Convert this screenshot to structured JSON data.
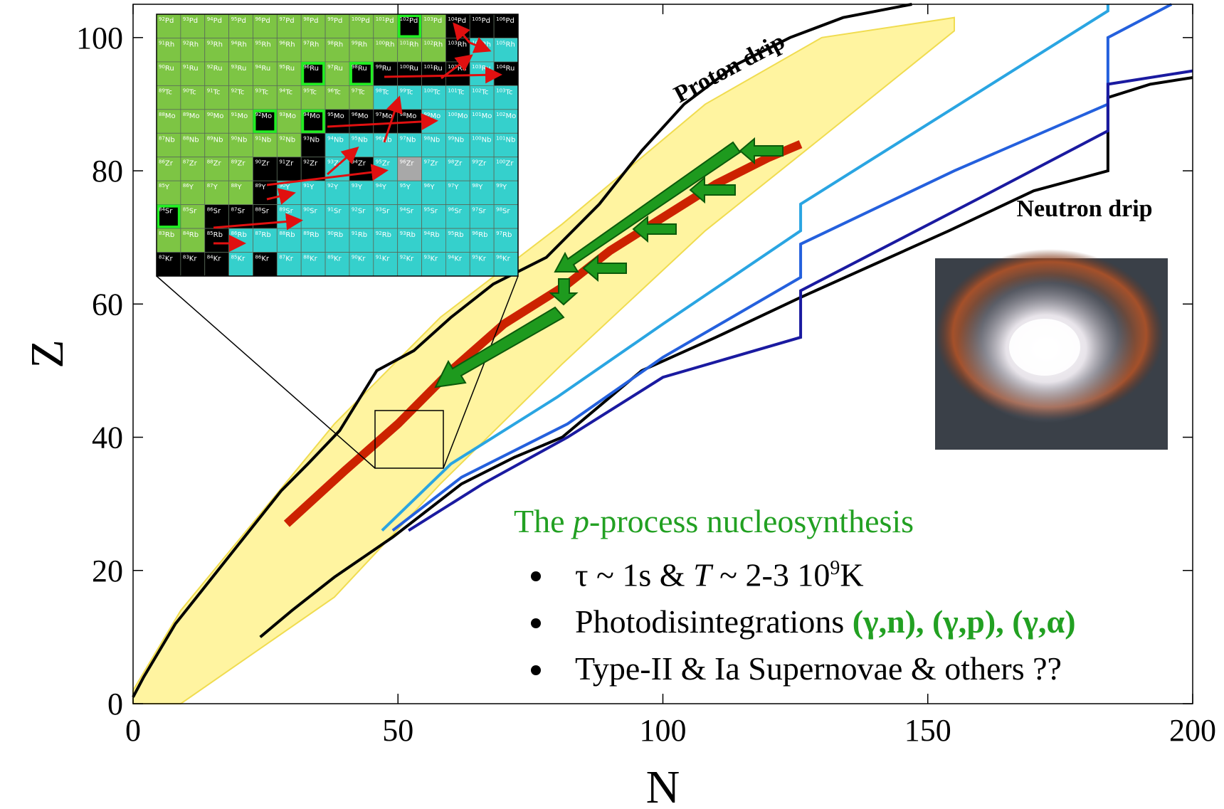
{
  "chart_data": {
    "type": "line",
    "xlabel": "N",
    "ylabel": "Z",
    "xlim": [
      0,
      200
    ],
    "ylim": [
      0,
      105
    ],
    "xticks": [
      0,
      50,
      100,
      150,
      200
    ],
    "yticks": [
      0,
      20,
      40,
      60,
      80,
      100
    ],
    "band": {
      "color": "#fff4a0",
      "x": [
        0,
        9,
        38,
        58,
        81,
        108,
        130,
        155
      ],
      "upper": [
        2,
        14,
        42,
        58,
        72,
        90,
        100,
        103
      ],
      "lower": [
        0,
        0,
        16,
        33,
        51,
        71,
        85,
        101
      ]
    },
    "series": [
      {
        "name": "Proton drip",
        "color": "#000000",
        "x": [
          0,
          2,
          5,
          8,
          12,
          16,
          20,
          24,
          28,
          33,
          39,
          46,
          53,
          60,
          68,
          78,
          88,
          96,
          104,
          114,
          124,
          134,
          147
        ],
        "values": [
          1,
          4,
          8,
          12,
          16,
          20,
          24,
          28,
          32,
          36,
          41,
          50,
          53,
          58,
          63,
          67,
          75,
          83,
          90,
          96,
          100,
          103,
          105
        ]
      },
      {
        "name": "Neutron drip",
        "color": "#000000",
        "x": [
          24,
          30,
          38,
          49,
          62,
          72,
          81,
          96,
          110,
          126,
          140,
          154,
          170,
          184,
          184,
          192,
          200
        ],
        "values": [
          10,
          14,
          19,
          25,
          33,
          37,
          40,
          50,
          55,
          61,
          66,
          71,
          77,
          80,
          91,
          93,
          94
        ]
      },
      {
        "color": "#2aa5e2",
        "x": [
          47,
          60,
          80,
          100,
          126,
          126,
          150,
          184,
          184
        ],
        "values": [
          26,
          36,
          46,
          57,
          71,
          75,
          87,
          104,
          105
        ]
      },
      {
        "color": "#2460dd",
        "x": [
          49,
          62,
          82,
          100,
          126,
          126,
          155,
          184,
          184,
          196
        ],
        "values": [
          26,
          34,
          42,
          52,
          64,
          69,
          80,
          90,
          100,
          105
        ]
      },
      {
        "color": "#1a1aa0",
        "x": [
          52,
          66,
          82,
          100,
          126,
          126,
          160,
          184,
          184,
          200
        ],
        "values": [
          26,
          33,
          40,
          49,
          55,
          62,
          76,
          86,
          93,
          95
        ]
      },
      {
        "color": "#cc2200",
        "x": [
          29,
          40,
          50,
          60,
          70,
          82,
          90,
          100,
          110,
          120,
          126
        ],
        "values": [
          27,
          35,
          42,
          50,
          57,
          63,
          68,
          73,
          78,
          82,
          84
        ]
      }
    ],
    "notes": {
      "heading": [
        "The ",
        "p",
        "-process nucleosynthesis"
      ],
      "bullets": [
        [
          "τ ~ 1s & ",
          "T",
          " ~ 2-3 10",
          "9",
          "K"
        ],
        [
          "Photodisintegrations ",
          "(γ,n), (γ,p), (γ,α)"
        ],
        [
          "Type-II & Ia Supernovae & others ??"
        ]
      ]
    }
  },
  "inset": {
    "rows": [
      {
        "element": "Pd",
        "A": [
          92,
          93,
          94,
          95,
          96,
          97,
          98,
          99,
          100,
          101,
          102,
          103,
          104,
          105,
          106
        ],
        "colors": [
          "#7dc544",
          "#7dc544",
          "#7dc544",
          "#7dc544",
          "#7dc544",
          "#7dc544",
          "#7dc544",
          "#7dc544",
          "#7dc544",
          "#7dc544",
          "#000000",
          "#7dc544",
          "#000000",
          "#000000",
          "#000000"
        ],
        "boxed": [
          102
        ]
      },
      {
        "element": "Rh",
        "A": [
          91,
          92,
          93,
          94,
          95,
          96,
          97,
          98,
          99,
          100,
          101,
          102,
          103,
          104,
          105
        ],
        "colors": [
          "#7dc544",
          "#7dc544",
          "#7dc544",
          "#7dc544",
          "#7dc544",
          "#7dc544",
          "#7dc544",
          "#7dc544",
          "#7dc544",
          "#7dc544",
          "#7dc544",
          "#7dc544",
          "#000000",
          "#35d0cc",
          "#35d0cc"
        ],
        "boxed": []
      },
      {
        "element": "Ru",
        "A": [
          90,
          91,
          92,
          93,
          94,
          95,
          96,
          97,
          98,
          99,
          100,
          101,
          102,
          103,
          104
        ],
        "colors": [
          "#7dc544",
          "#7dc544",
          "#7dc544",
          "#7dc544",
          "#7dc544",
          "#7dc544",
          "#000000",
          "#7dc544",
          "#000000",
          "#000000",
          "#000000",
          "#000000",
          "#000000",
          "#35d0cc",
          "#000000"
        ],
        "boxed": [
          96,
          98
        ]
      },
      {
        "element": "Tc",
        "A": [
          89,
          90,
          91,
          92,
          93,
          94,
          95,
          96,
          97,
          98,
          99,
          100,
          101,
          102,
          103
        ],
        "colors": [
          "#7dc544",
          "#7dc544",
          "#7dc544",
          "#7dc544",
          "#7dc544",
          "#7dc544",
          "#7dc544",
          "#7dc544",
          "#7dc544",
          "#35d0cc",
          "#35d0cc",
          "#35d0cc",
          "#35d0cc",
          "#35d0cc",
          "#35d0cc"
        ],
        "boxed": []
      },
      {
        "element": "Mo",
        "A": [
          88,
          89,
          90,
          91,
          92,
          93,
          94,
          95,
          96,
          97,
          98,
          99,
          100,
          101,
          102
        ],
        "colors": [
          "#7dc544",
          "#7dc544",
          "#7dc544",
          "#7dc544",
          "#000000",
          "#7dc544",
          "#000000",
          "#000000",
          "#000000",
          "#000000",
          "#000000",
          "#35d0cc",
          "#35d0cc",
          "#35d0cc",
          "#35d0cc"
        ],
        "boxed": [
          92,
          94
        ]
      },
      {
        "element": "Nb",
        "A": [
          87,
          88,
          89,
          90,
          91,
          92,
          93,
          94,
          95,
          96,
          97,
          98,
          99,
          100,
          101
        ],
        "colors": [
          "#7dc544",
          "#7dc544",
          "#7dc544",
          "#7dc544",
          "#7dc544",
          "#7dc544",
          "#000000",
          "#35d0cc",
          "#35d0cc",
          "#35d0cc",
          "#35d0cc",
          "#35d0cc",
          "#35d0cc",
          "#35d0cc",
          "#35d0cc"
        ],
        "boxed": []
      },
      {
        "element": "Zr",
        "A": [
          86,
          87,
          88,
          89,
          90,
          91,
          92,
          93,
          94,
          95,
          96,
          97,
          98,
          99,
          100
        ],
        "colors": [
          "#7dc544",
          "#7dc544",
          "#7dc544",
          "#7dc544",
          "#000000",
          "#000000",
          "#000000",
          "#35d0cc",
          "#000000",
          "#35d0cc",
          "#a8a8a8",
          "#35d0cc",
          "#35d0cc",
          "#35d0cc",
          "#35d0cc"
        ],
        "boxed": []
      },
      {
        "element": "Y",
        "A": [
          85,
          86,
          87,
          88,
          89,
          90,
          91,
          92,
          93,
          94,
          95,
          96,
          97,
          98,
          99
        ],
        "colors": [
          "#7dc544",
          "#7dc544",
          "#7dc544",
          "#7dc544",
          "#000000",
          "#35d0cc",
          "#35d0cc",
          "#35d0cc",
          "#35d0cc",
          "#35d0cc",
          "#35d0cc",
          "#35d0cc",
          "#35d0cc",
          "#35d0cc",
          "#35d0cc"
        ],
        "boxed": []
      },
      {
        "element": "Sr",
        "A": [
          84,
          85,
          86,
          87,
          88,
          89,
          90,
          91,
          92,
          93,
          94,
          95,
          96,
          97,
          98
        ],
        "colors": [
          "#000000",
          "#7dc544",
          "#000000",
          "#000000",
          "#000000",
          "#35d0cc",
          "#35d0cc",
          "#35d0cc",
          "#35d0cc",
          "#35d0cc",
          "#35d0cc",
          "#35d0cc",
          "#35d0cc",
          "#35d0cc",
          "#35d0cc"
        ],
        "boxed": [
          84
        ]
      },
      {
        "element": "Rb",
        "A": [
          83,
          84,
          85,
          86,
          87,
          88,
          89,
          90,
          91,
          92,
          93,
          94,
          95,
          96,
          97
        ],
        "colors": [
          "#7dc544",
          "#7dc544",
          "#000000",
          "#35d0cc",
          "#35d0cc",
          "#35d0cc",
          "#35d0cc",
          "#35d0cc",
          "#35d0cc",
          "#35d0cc",
          "#35d0cc",
          "#35d0cc",
          "#35d0cc",
          "#35d0cc",
          "#35d0cc"
        ],
        "boxed": []
      },
      {
        "element": "Kr",
        "A": [
          82,
          83,
          84,
          85,
          86,
          87,
          88,
          89,
          90,
          91,
          92,
          93,
          94,
          95,
          96
        ],
        "colors": [
          "#000000",
          "#000000",
          "#000000",
          "#35d0cc",
          "#000000",
          "#35d0cc",
          "#35d0cc",
          "#35d0cc",
          "#35d0cc",
          "#35d0cc",
          "#35d0cc",
          "#35d0cc",
          "#35d0cc",
          "#35d0cc",
          "#35d0cc"
        ],
        "boxed": []
      }
    ]
  }
}
